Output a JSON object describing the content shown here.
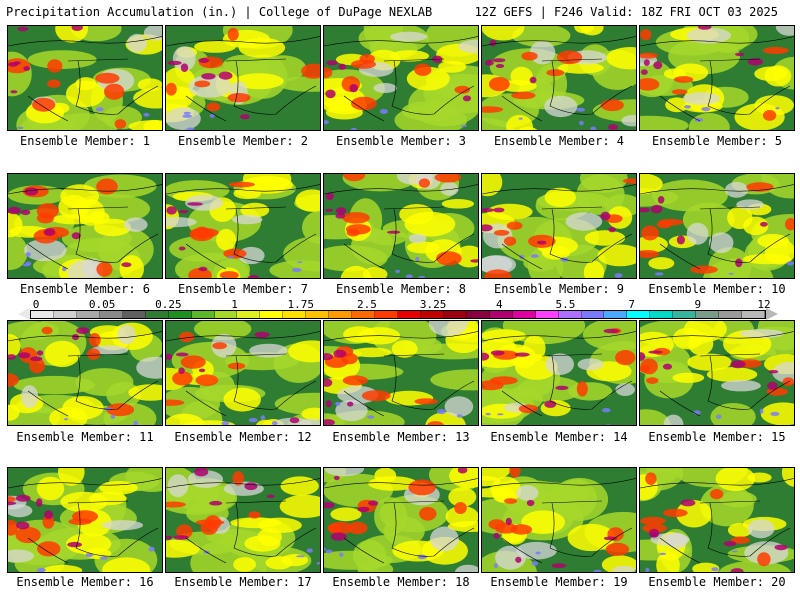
{
  "header": {
    "title_left": "Precipitation Accumulation (in.) | College of DuPage NEXLAB",
    "title_right": "12Z GEFS | F246 Valid: 18Z FRI OCT 03 2025"
  },
  "panels": [
    {
      "caption": "Ensemble Member: 1"
    },
    {
      "caption": "Ensemble Member: 2"
    },
    {
      "caption": "Ensemble Member: 3"
    },
    {
      "caption": "Ensemble Member: 4"
    },
    {
      "caption": "Ensemble Member: 5"
    },
    {
      "caption": "Ensemble Member: 6"
    },
    {
      "caption": "Ensemble Member: 7"
    },
    {
      "caption": "Ensemble Member: 8"
    },
    {
      "caption": "Ensemble Member: 9"
    },
    {
      "caption": "Ensemble Member: 10"
    },
    {
      "caption": "Ensemble Member: 11"
    },
    {
      "caption": "Ensemble Member: 12"
    },
    {
      "caption": "Ensemble Member: 13"
    },
    {
      "caption": "Ensemble Member: 14"
    },
    {
      "caption": "Ensemble Member: 15"
    },
    {
      "caption": "Ensemble Member: 16"
    },
    {
      "caption": "Ensemble Member: 17"
    },
    {
      "caption": "Ensemble Member: 18"
    },
    {
      "caption": "Ensemble Member: 19"
    },
    {
      "caption": "Ensemble Member: 20"
    }
  ],
  "colorbar": {
    "labels": [
      "0",
      "0.05",
      "0.25",
      "1",
      "1.75",
      "2.5",
      "3.25",
      "4",
      "5.5",
      "7",
      "9",
      "12"
    ],
    "colors": [
      "#e8e8e8",
      "#cfcfcf",
      "#a9a9a9",
      "#8a8a8a",
      "#606060",
      "#2e7d32",
      "#1f8f1f",
      "#5cb82a",
      "#a6d82a",
      "#e0ef22",
      "#ffff00",
      "#ffe100",
      "#ffc000",
      "#ff9a00",
      "#ff6a00",
      "#ff3b00",
      "#e60000",
      "#c00000",
      "#9a0010",
      "#880040",
      "#b00070",
      "#e000a0",
      "#ff40ff",
      "#b070ff",
      "#7a7aff",
      "#4aa8ff",
      "#00ffff",
      "#00d8c8",
      "#36b49c",
      "#7a9a8a",
      "#9a9a9a",
      "#b8b8b8"
    ]
  },
  "map_palette": {
    "land_dry": "#2e7d32",
    "light": "#a6d82a",
    "moderate": "#ffff00",
    "heavy": "#ff3b00",
    "very_heavy": "#b00070",
    "extreme": "#7a7aff",
    "none": "#d8d8d8",
    "borders": "#000000"
  }
}
